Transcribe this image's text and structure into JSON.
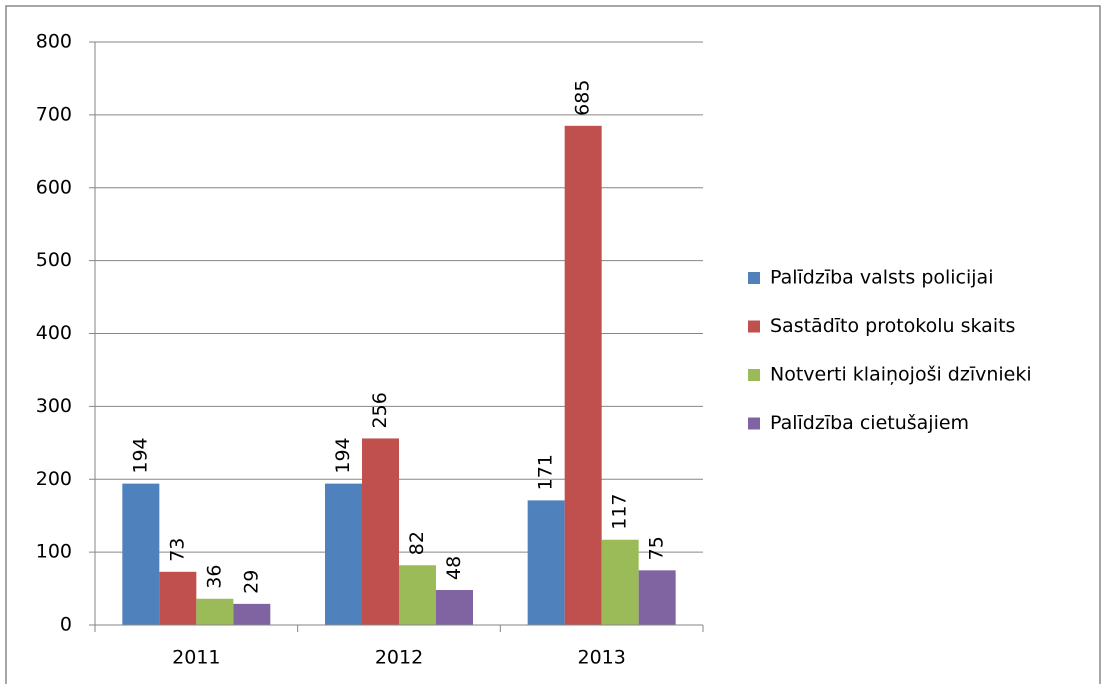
{
  "chart_data": {
    "type": "bar",
    "categories": [
      "2011",
      "2012",
      "2013"
    ],
    "series": [
      {
        "name": "Palīdzība valsts policijai",
        "color": "#4f81bd",
        "values": [
          194,
          194,
          171
        ]
      },
      {
        "name": "Sastādīto protokolu skaits",
        "color": "#c0504d",
        "values": [
          73,
          256,
          685
        ]
      },
      {
        "name": "Notverti klaiņojoši dzīvnieki",
        "color": "#9bbb59",
        "values": [
          36,
          82,
          117
        ]
      },
      {
        "name": "Palīdzība cietušajiem",
        "color": "#8064a2",
        "values": [
          29,
          48,
          75
        ]
      }
    ],
    "ylim": [
      0,
      800
    ],
    "yticks": [
      0,
      100,
      200,
      300,
      400,
      500,
      600,
      700,
      800
    ],
    "grid": true,
    "legend": "right",
    "data_labels": true
  }
}
